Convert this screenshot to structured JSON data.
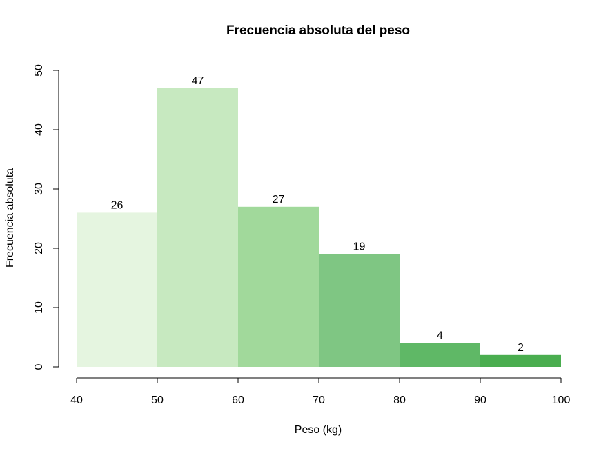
{
  "chart_data": {
    "type": "histogram",
    "title": "Frecuencia absoluta del peso",
    "xlabel": "Peso (kg)",
    "ylabel": "Frecuencia absoluta",
    "bins": [
      {
        "start": 40,
        "end": 50,
        "value": 26,
        "label": "26",
        "color": "#e5f5e0"
      },
      {
        "start": 50,
        "end": 60,
        "value": 47,
        "label": "47",
        "color": "#c7e9c0"
      },
      {
        "start": 60,
        "end": 70,
        "value": 27,
        "label": "27",
        "color": "#a1d99b"
      },
      {
        "start": 70,
        "end": 80,
        "value": 19,
        "label": "19",
        "color": "#7fc683"
      },
      {
        "start": 80,
        "end": 90,
        "value": 4,
        "label": "4",
        "color": "#5fb866"
      },
      {
        "start": 90,
        "end": 100,
        "value": 2,
        "label": "2",
        "color": "#4aad4f"
      }
    ],
    "xlim": [
      40,
      100
    ],
    "ylim": [
      0,
      50
    ],
    "xticks": [
      "40",
      "50",
      "60",
      "70",
      "80",
      "90",
      "100"
    ],
    "yticks": [
      "0",
      "10",
      "20",
      "30",
      "40",
      "50"
    ],
    "grid": false,
    "legend": "none"
  }
}
